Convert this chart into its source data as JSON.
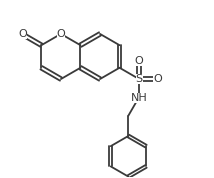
{
  "bg_color": "#ffffff",
  "line_color": "#3a3a3a",
  "line_width": 1.3,
  "font_size": 8.0,
  "figsize": [
    2.14,
    1.78
  ],
  "dpi": 100,
  "xlim": [
    -0.5,
    6.5
  ],
  "ylim": [
    -3.8,
    2.8
  ]
}
